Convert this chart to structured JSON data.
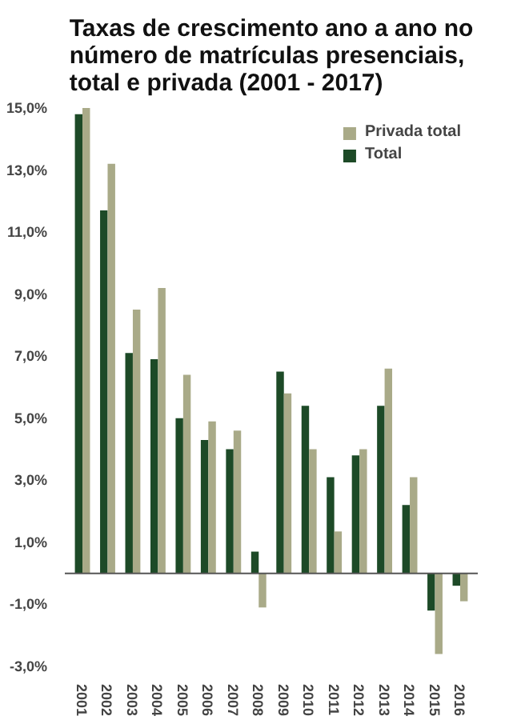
{
  "chart_data": {
    "type": "bar",
    "title": "Taxas de crescimento ano a ano no\nnúmero de matrículas presenciais,\ntotal e privada (2001 - 2017)",
    "categories": [
      "2001",
      "2002",
      "2003",
      "2004",
      "2005",
      "2006",
      "2007",
      "2008",
      "2009",
      "2010",
      "2011",
      "2012",
      "2013",
      "2014",
      "2015",
      "2016"
    ],
    "series": [
      {
        "name": "Total",
        "color": "#1d4a27",
        "values": [
          14.8,
          11.7,
          7.1,
          6.9,
          5.0,
          4.3,
          4.0,
          0.7,
          6.5,
          5.4,
          3.1,
          3.8,
          5.4,
          2.2,
          -1.2,
          -0.4
        ]
      },
      {
        "name": "Privada total",
        "color": "#a9aa88",
        "values": [
          15.0,
          13.2,
          8.5,
          9.2,
          6.4,
          4.9,
          4.6,
          -1.1,
          5.8,
          4.0,
          1.35,
          4.0,
          6.6,
          3.1,
          -2.6,
          -0.9
        ]
      }
    ],
    "ylim": [
      -3,
      15
    ],
    "yticks": [
      {
        "value": -3,
        "label": "-3,0%"
      },
      {
        "value": -1,
        "label": "-1,0%"
      },
      {
        "value": 1,
        "label": "1,0%"
      },
      {
        "value": 3,
        "label": "3,0%"
      },
      {
        "value": 5,
        "label": "5,0%"
      },
      {
        "value": 7,
        "label": "7,0%"
      },
      {
        "value": 9,
        "label": "9,0%"
      },
      {
        "value": 11,
        "label": "11,0%"
      },
      {
        "value": 13,
        "label": "13,0%"
      },
      {
        "value": 15,
        "label": "15,0%"
      }
    ],
    "grid": false,
    "legend": "top right"
  }
}
